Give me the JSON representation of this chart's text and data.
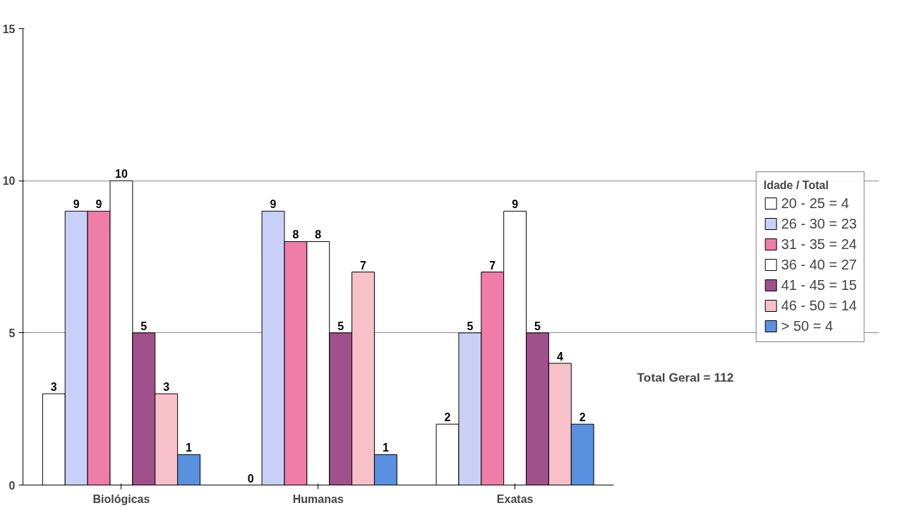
{
  "chart_data": {
    "type": "bar",
    "categories": [
      "Biológicas",
      "Humanas",
      "Exatas"
    ],
    "series": [
      {
        "name": "20 - 25 = 4",
        "color": "#ffffff",
        "values": [
          3,
          0,
          2
        ]
      },
      {
        "name": "26 - 30 = 23",
        "color": "#c8d0f8",
        "values": [
          9,
          9,
          5
        ]
      },
      {
        "name": "31 - 35 = 24",
        "color": "#f07ca8",
        "values": [
          9,
          8,
          7
        ]
      },
      {
        "name": "36 - 40 = 27",
        "color": "#ffffff",
        "values": [
          10,
          8,
          9
        ]
      },
      {
        "name": "41 - 45 = 15",
        "color": "#a0508a",
        "values": [
          5,
          5,
          5
        ]
      },
      {
        "name": "46 - 50 = 14",
        "color": "#f8c0c8",
        "values": [
          3,
          7,
          4
        ]
      },
      {
        "name": "> 50 = 4",
        "color": "#5a90e0",
        "values": [
          1,
          1,
          2
        ]
      }
    ],
    "legend_title": "Idade / Total",
    "annotations": [
      "Total Geral = 112"
    ],
    "ylim": [
      0,
      15
    ],
    "yticks": [
      0,
      5,
      10,
      15
    ],
    "grid": "y",
    "legend": "right",
    "data_labels": true
  }
}
